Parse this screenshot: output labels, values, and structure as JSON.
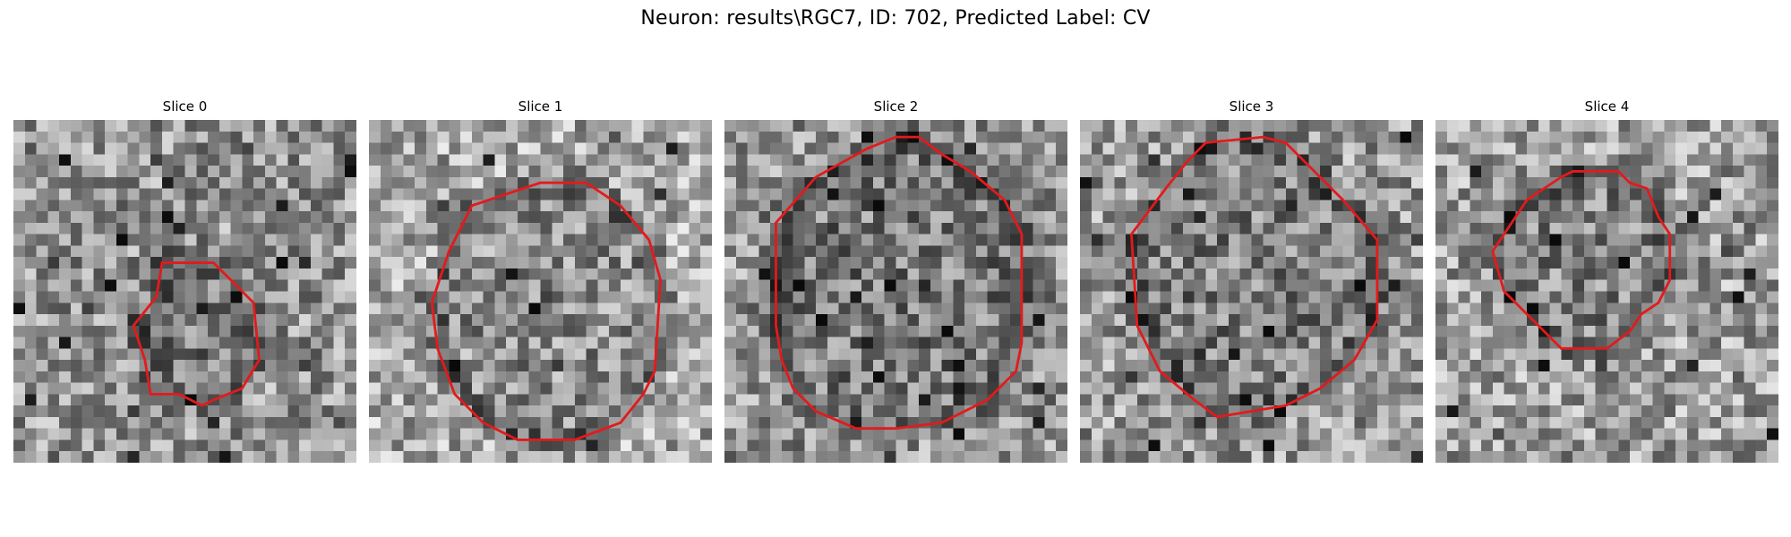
{
  "figure": {
    "title": "Neuron: results\\RGC7, ID: 702, Predicted Label: CV"
  },
  "panels": [
    {
      "title": "Slice 0",
      "grid_size": 30,
      "tone_bias": 0.0,
      "contour_color": "#e31a1c",
      "contour": [
        [
          13,
          12.5
        ],
        [
          17.5,
          12.5
        ],
        [
          21,
          16
        ],
        [
          21.5,
          21
        ],
        [
          20,
          23.5
        ],
        [
          17.5,
          24.5
        ],
        [
          16.5,
          25
        ],
        [
          14.5,
          24
        ],
        [
          12,
          24
        ],
        [
          11.5,
          21
        ],
        [
          10.5,
          18
        ],
        [
          12.5,
          15.5
        ]
      ]
    },
    {
      "title": "Slice 1",
      "grid_size": 30,
      "tone_bias": 0.08,
      "contour_color": "#e31a1c",
      "contour": [
        [
          9,
          7.5
        ],
        [
          15,
          5.5
        ],
        [
          19,
          5.5
        ],
        [
          22,
          7.5
        ],
        [
          24.5,
          10.5
        ],
        [
          25.5,
          14
        ],
        [
          25,
          22
        ],
        [
          24,
          24
        ],
        [
          22,
          26.5
        ],
        [
          18,
          28
        ],
        [
          13,
          28
        ],
        [
          10,
          26.5
        ],
        [
          7.5,
          24
        ],
        [
          6,
          20
        ],
        [
          5.5,
          16
        ],
        [
          7,
          11.5
        ]
      ]
    },
    {
      "title": "Slice 2",
      "grid_size": 30,
      "tone_bias": 0.0,
      "contour_color": "#e31a1c",
      "contour": [
        [
          8,
          5
        ],
        [
          12.5,
          2.5
        ],
        [
          15,
          1.5
        ],
        [
          17,
          1.5
        ],
        [
          19,
          3
        ],
        [
          21.5,
          4.5
        ],
        [
          24.5,
          7
        ],
        [
          26,
          10
        ],
        [
          26,
          19.5
        ],
        [
          25.5,
          22
        ],
        [
          23,
          24.5
        ],
        [
          19,
          26.5
        ],
        [
          15,
          27
        ],
        [
          11.5,
          27
        ],
        [
          8,
          25.5
        ],
        [
          6,
          23.5
        ],
        [
          5,
          21
        ],
        [
          4.5,
          18
        ],
        [
          4.5,
          9
        ]
      ]
    },
    {
      "title": "Slice 3",
      "grid_size": 30,
      "tone_bias": 0.02,
      "contour_color": "#e31a1c",
      "contour": [
        [
          7.5,
          6
        ],
        [
          9.5,
          3.5
        ],
        [
          11,
          2
        ],
        [
          16,
          1.5
        ],
        [
          18,
          2
        ],
        [
          21,
          5
        ],
        [
          23,
          7
        ],
        [
          26,
          10.5
        ],
        [
          26,
          17.5
        ],
        [
          24,
          21
        ],
        [
          21,
          23.5
        ],
        [
          18,
          25
        ],
        [
          15,
          25.5
        ],
        [
          12,
          26
        ],
        [
          10,
          24.5
        ],
        [
          7,
          22
        ],
        [
          5,
          18
        ],
        [
          4.5,
          10
        ]
      ]
    },
    {
      "title": "Slice 4",
      "grid_size": 30,
      "tone_bias": 0.04,
      "contour_color": "#e31a1c",
      "contour": [
        [
          8,
          7
        ],
        [
          11,
          5
        ],
        [
          12,
          4.5
        ],
        [
          16,
          4.5
        ],
        [
          17,
          5.5
        ],
        [
          18.5,
          6
        ],
        [
          19.5,
          8.5
        ],
        [
          20.5,
          10
        ],
        [
          20.5,
          14
        ],
        [
          19.5,
          16
        ],
        [
          18,
          17
        ],
        [
          17,
          18.5
        ],
        [
          15,
          20
        ],
        [
          11,
          20
        ],
        [
          10,
          19
        ],
        [
          8,
          17
        ],
        [
          6,
          15
        ],
        [
          5,
          11.5
        ]
      ]
    }
  ]
}
